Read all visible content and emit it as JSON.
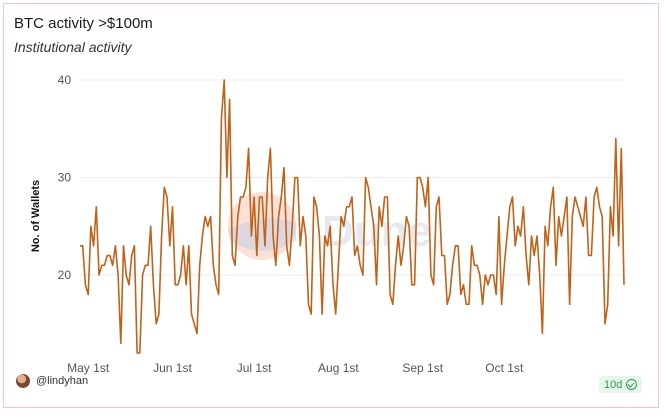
{
  "header": {
    "title": "BTC activity >$100m",
    "subtitle": "Institutional activity"
  },
  "footer": {
    "username": "@lindyhan",
    "badge": "10d"
  },
  "watermark": "Dune",
  "colors": {
    "line": "#c0621a",
    "grid": "#ececec",
    "axis_text": "#555555"
  },
  "chart_data": {
    "type": "line",
    "title": "BTC activity >$100m",
    "ylabel": "No. of Wallets",
    "xlabel": "",
    "ylim": [
      12,
      40
    ],
    "yticks": [
      20,
      30,
      40
    ],
    "grid": true,
    "x_start": "2024-04-28",
    "x_ticks": [
      {
        "date": "2024-05-01",
        "label": "May 1st"
      },
      {
        "date": "2024-06-01",
        "label": "Jun 1st"
      },
      {
        "date": "2024-07-01",
        "label": "Jul 1st"
      },
      {
        "date": "2024-08-01",
        "label": "Aug 1st"
      },
      {
        "date": "2024-09-01",
        "label": "Sep 1st"
      },
      {
        "date": "2024-10-01",
        "label": "Oct 1st"
      }
    ],
    "series": [
      {
        "values": [
          23,
          23,
          19,
          18,
          25,
          23,
          27,
          20,
          21,
          21,
          22,
          22,
          21,
          23,
          20,
          13,
          23,
          20,
          19,
          22,
          23,
          12,
          12,
          20,
          21,
          21,
          25,
          19,
          15,
          16,
          24,
          29,
          28,
          23,
          27,
          19,
          19,
          20,
          23,
          19,
          23,
          16,
          15,
          14,
          21,
          24,
          26,
          25,
          26,
          21,
          19,
          18,
          36,
          40,
          30,
          38,
          22,
          21,
          26,
          28,
          28,
          29,
          33,
          24,
          28,
          22,
          28,
          28,
          23,
          30,
          33,
          24,
          21,
          26,
          28,
          31,
          23,
          21,
          25,
          30,
          30,
          23,
          26,
          24,
          17,
          16,
          28,
          27,
          24,
          16,
          24,
          23,
          25,
          19,
          16,
          21,
          26,
          25,
          27,
          27,
          28,
          22,
          23,
          21,
          20,
          30,
          29,
          27,
          25,
          19,
          27,
          25,
          28,
          28,
          18,
          17,
          21,
          24,
          21,
          23,
          26,
          25,
          19,
          19,
          30,
          30,
          29,
          27,
          30,
          20,
          19,
          27,
          28,
          22,
          22,
          17,
          18,
          21,
          23,
          23,
          18,
          19,
          17,
          17,
          23,
          21,
          21,
          20,
          17,
          20,
          19,
          20,
          20,
          18,
          26,
          17,
          21,
          24,
          27,
          28,
          23,
          25,
          24,
          27,
          22,
          19,
          24,
          22,
          24,
          20,
          14,
          25,
          23,
          27,
          29,
          21,
          26,
          24,
          26,
          28,
          17,
          26,
          28,
          27,
          26,
          25,
          28,
          22,
          22,
          28,
          29,
          27,
          26,
          15,
          17,
          27,
          24,
          34,
          23,
          33,
          19
        ]
      }
    ]
  }
}
